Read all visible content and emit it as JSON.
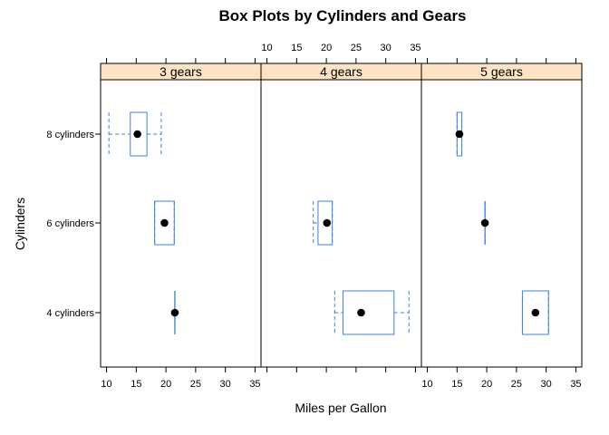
{
  "chart_data": {
    "type": "boxplot",
    "title": "Box Plots by Cylinders and Gears",
    "xlabel": "Miles per Gallon",
    "ylabel": "Cylinders",
    "xlim": [
      9,
      36
    ],
    "xticks": [
      10,
      15,
      20,
      25,
      30,
      35
    ],
    "categories": [
      "4 cylinders",
      "6 cylinders",
      "8 cylinders"
    ],
    "colors": {
      "box": "#3b82e0",
      "strip": "#ffe4c4",
      "median": "#000000",
      "frame": "#000000"
    },
    "panels": [
      {
        "label": "3 gears",
        "boxes": [
          {
            "category": "8 cylinders",
            "min": 10.4,
            "q1": 14.0,
            "median": 15.2,
            "q3": 16.8,
            "max": 19.2
          },
          {
            "category": "6 cylinders",
            "min": 18.1,
            "q1": 18.1,
            "median": 19.75,
            "q3": 21.4,
            "max": 21.4
          },
          {
            "category": "4 cylinders",
            "min": 21.5,
            "q1": 21.5,
            "median": 21.5,
            "q3": 21.5,
            "max": 21.5
          }
        ]
      },
      {
        "label": "4 gears",
        "boxes": [
          {
            "category": "6 cylinders",
            "min": 17.8,
            "q1": 18.6,
            "median": 20.1,
            "q3": 21.0,
            "max": 21.0
          },
          {
            "category": "4 cylinders",
            "min": 21.4,
            "q1": 22.8,
            "median": 25.85,
            "q3": 31.4,
            "max": 33.9
          }
        ]
      },
      {
        "label": "5 gears",
        "boxes": [
          {
            "category": "8 cylinders",
            "min": 15.0,
            "q1": 15.0,
            "median": 15.4,
            "q3": 15.8,
            "max": 15.8
          },
          {
            "category": "6 cylinders",
            "min": 19.7,
            "q1": 19.7,
            "median": 19.7,
            "q3": 19.7,
            "max": 19.7
          },
          {
            "category": "4 cylinders",
            "min": 26.0,
            "q1": 26.0,
            "median": 28.2,
            "q3": 30.4,
            "max": 30.4
          }
        ]
      }
    ]
  }
}
